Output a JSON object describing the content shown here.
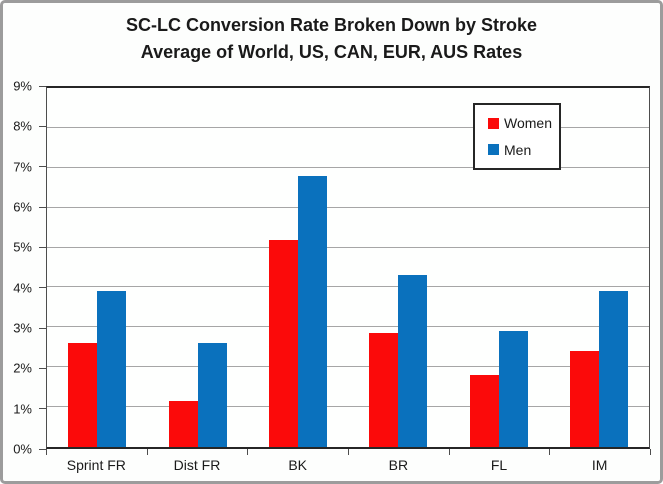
{
  "chart_data": {
    "type": "bar",
    "title": "SC-LC Conversion Rate Broken Down by Stroke",
    "subtitle": "Average of World, US, CAN, EUR, AUS Rates",
    "categories": [
      "Sprint FR",
      "Dist FR",
      "BK",
      "BR",
      "FL",
      "IM"
    ],
    "series": [
      {
        "name": "Women",
        "color": "#fb0a0a",
        "values": [
          2.6,
          1.15,
          5.2,
          2.85,
          1.8,
          2.4
        ]
      },
      {
        "name": "Men",
        "color": "#0a71bd",
        "values": [
          3.9,
          2.6,
          6.8,
          4.3,
          2.9,
          3.9
        ]
      }
    ],
    "xlabel": "",
    "ylabel": "",
    "ylim": [
      0,
      9
    ],
    "y_tick_step": 1,
    "y_tick_labels": [
      "0%",
      "1%",
      "2%",
      "3%",
      "4%",
      "5%",
      "6%",
      "7%",
      "8%",
      "9%"
    ],
    "grid": true,
    "legend_position": "inside-top-right"
  },
  "colors": {
    "women_bar": "#fb0a0a",
    "men_bar": "#0a71bd",
    "gridline": "#a6a6a6",
    "axis": "#4d4d4d",
    "plot_border": "#262626",
    "frame_border": "#9c9c9c",
    "background": "#fdfefd",
    "text": "#1a1a1a"
  }
}
